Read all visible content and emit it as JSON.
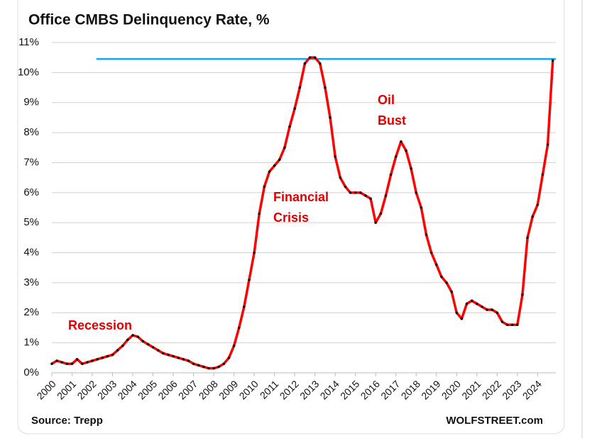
{
  "chart_data": {
    "type": "line",
    "title": "Office CMBS Delinquency Rate, %",
    "source": "Source: Trepp",
    "credit": "WOLFSTREET.com",
    "annotations": [
      [
        "Recession"
      ],
      [
        "Financial",
        "Crisis"
      ],
      [
        "Oil",
        "Bust"
      ]
    ],
    "annotation_color": "#e00000",
    "xlim": [
      2000,
      2024.9
    ],
    "xticks": [
      2000,
      2001,
      2002,
      2003,
      2004,
      2005,
      2006,
      2007,
      2008,
      2009,
      2010,
      2011,
      2012,
      2013,
      2014,
      2015,
      2016,
      2017,
      2018,
      2019,
      2020,
      2021,
      2022,
      2023,
      2024
    ],
    "ylim": [
      0,
      11
    ],
    "yticks": [
      {
        "value": 0,
        "label": "0%"
      },
      {
        "value": 1,
        "label": "1%"
      },
      {
        "value": 2,
        "label": "2%"
      },
      {
        "value": 3,
        "label": "3%"
      },
      {
        "value": 4,
        "label": "4%"
      },
      {
        "value": 5,
        "label": "5%"
      },
      {
        "value": 6,
        "label": "6%"
      },
      {
        "value": 7,
        "label": "7%"
      },
      {
        "value": 8,
        "label": "8%"
      },
      {
        "value": 9,
        "label": "9%"
      },
      {
        "value": 10,
        "label": "10%"
      },
      {
        "value": 11,
        "label": "11%"
      }
    ],
    "grid": true,
    "reference_line": {
      "value": 10.45,
      "x": [
        2002.2,
        2024.9
      ],
      "color": "#1ea7e8"
    },
    "series": [
      {
        "color": "#ff0000",
        "marker_color": "#111111",
        "x": [
          2000,
          2000.25,
          2000.5,
          2000.75,
          2001,
          2001.25,
          2001.5,
          2001.75,
          2002,
          2002.25,
          2002.5,
          2002.75,
          2003,
          2003.25,
          2003.5,
          2003.75,
          2004,
          2004.25,
          2004.5,
          2004.75,
          2005,
          2005.25,
          2005.5,
          2005.75,
          2006,
          2006.25,
          2006.5,
          2006.75,
          2007,
          2007.25,
          2007.5,
          2007.75,
          2008,
          2008.25,
          2008.5,
          2008.75,
          2009,
          2009.25,
          2009.5,
          2009.75,
          2010,
          2010.25,
          2010.5,
          2010.75,
          2011,
          2011.25,
          2011.5,
          2011.75,
          2012,
          2012.25,
          2012.5,
          2012.75,
          2013,
          2013.25,
          2013.5,
          2013.75,
          2014,
          2014.25,
          2014.5,
          2014.75,
          2015,
          2015.25,
          2015.5,
          2015.75,
          2016,
          2016.25,
          2016.5,
          2016.75,
          2017,
          2017.25,
          2017.5,
          2017.75,
          2018,
          2018.25,
          2018.5,
          2018.75,
          2019,
          2019.25,
          2019.5,
          2019.75,
          2020,
          2020.25,
          2020.5,
          2020.75,
          2021,
          2021.25,
          2021.5,
          2021.75,
          2022,
          2022.25,
          2022.5,
          2022.75,
          2023,
          2023.25,
          2023.5,
          2023.75,
          2024,
          2024.25,
          2024.5,
          2024.75
        ],
        "values": [
          0.3,
          0.4,
          0.35,
          0.3,
          0.3,
          0.45,
          0.3,
          0.35,
          0.4,
          0.45,
          0.5,
          0.55,
          0.6,
          0.75,
          0.9,
          1.1,
          1.25,
          1.2,
          1.05,
          0.95,
          0.85,
          0.75,
          0.65,
          0.6,
          0.55,
          0.5,
          0.45,
          0.4,
          0.3,
          0.25,
          0.2,
          0.15,
          0.15,
          0.2,
          0.3,
          0.5,
          0.9,
          1.5,
          2.2,
          3.1,
          4.0,
          5.3,
          6.2,
          6.7,
          6.9,
          7.1,
          7.5,
          8.2,
          8.8,
          9.5,
          10.3,
          10.5,
          10.5,
          10.3,
          9.5,
          8.5,
          7.2,
          6.5,
          6.2,
          6.0,
          6.0,
          6.0,
          5.9,
          5.8,
          5.0,
          5.3,
          5.9,
          6.6,
          7.2,
          7.7,
          7.4,
          6.8,
          6.0,
          5.5,
          4.6,
          4.0,
          3.6,
          3.2,
          3.0,
          2.7,
          2.0,
          1.8,
          2.3,
          2.4,
          2.3,
          2.2,
          2.1,
          2.1,
          2.0,
          1.7,
          1.6,
          1.6,
          1.6,
          2.6,
          4.5,
          5.2,
          5.6,
          6.6,
          7.6,
          10.4
        ]
      }
    ]
  }
}
